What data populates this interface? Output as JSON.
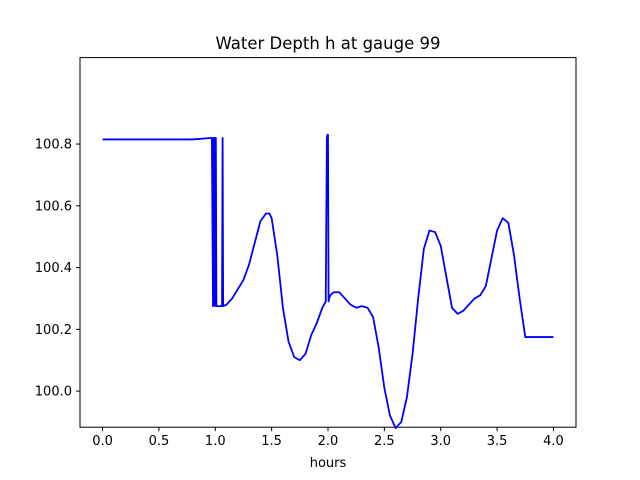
{
  "chart_data": {
    "type": "line",
    "title": "Water Depth h at gauge 99",
    "xlabel": "hours",
    "ylabel": "",
    "xlim": [
      -0.2,
      4.2
    ],
    "ylim": [
      99.883,
      101.08
    ],
    "xticks": [
      0.0,
      0.5,
      1.0,
      1.5,
      2.0,
      2.5,
      3.0,
      3.5,
      4.0
    ],
    "xtick_labels": [
      "0.0",
      "0.5",
      "1.0",
      "1.5",
      "2.0",
      "2.5",
      "3.0",
      "3.5",
      "4.0"
    ],
    "yticks": [
      100.0,
      100.2,
      100.4,
      100.6,
      100.8
    ],
    "ytick_labels": [
      "100.0",
      "100.2",
      "100.4",
      "100.6",
      "100.8"
    ],
    "grid": false,
    "series": [
      {
        "color": "#0000ff",
        "x": [
          0.0,
          0.5,
          0.8,
          0.97,
          0.98,
          0.985,
          0.99,
          0.995,
          1.0,
          1.005,
          1.01,
          1.02,
          1.06,
          1.065,
          1.07,
          1.1,
          1.15,
          1.2,
          1.25,
          1.3,
          1.35,
          1.4,
          1.45,
          1.48,
          1.5,
          1.55,
          1.6,
          1.65,
          1.7,
          1.75,
          1.8,
          1.85,
          1.9,
          1.95,
          1.98,
          1.99,
          1.995,
          2.0,
          2.005,
          2.01,
          2.02,
          2.05,
          2.1,
          2.15,
          2.2,
          2.25,
          2.3,
          2.35,
          2.4,
          2.45,
          2.5,
          2.55,
          2.6,
          2.65,
          2.7,
          2.75,
          2.8,
          2.85,
          2.9,
          2.95,
          3.0,
          3.05,
          3.1,
          3.15,
          3.2,
          3.25,
          3.3,
          3.35,
          3.4,
          3.45,
          3.5,
          3.55,
          3.6,
          3.65,
          3.7,
          3.75,
          3.8,
          3.85,
          3.9,
          3.95,
          4.0
        ],
        "y": [
          100.815,
          100.815,
          100.815,
          100.82,
          100.275,
          100.82,
          100.82,
          100.275,
          100.82,
          100.82,
          100.275,
          100.275,
          100.275,
          100.82,
          100.275,
          100.28,
          100.3,
          100.33,
          100.36,
          100.41,
          100.48,
          100.55,
          100.575,
          100.575,
          100.56,
          100.44,
          100.27,
          100.16,
          100.11,
          100.1,
          100.12,
          100.18,
          100.22,
          100.27,
          100.29,
          100.82,
          100.83,
          100.83,
          100.29,
          100.3,
          100.31,
          100.32,
          100.32,
          100.3,
          100.28,
          100.27,
          100.275,
          100.27,
          100.24,
          100.14,
          100.01,
          99.92,
          99.88,
          99.9,
          99.98,
          100.12,
          100.3,
          100.46,
          100.52,
          100.515,
          100.47,
          100.37,
          100.27,
          100.25,
          100.26,
          100.28,
          100.3,
          100.31,
          100.34,
          100.43,
          100.52,
          100.56,
          100.545,
          100.44,
          100.3,
          100.175,
          100.175,
          100.175,
          100.175,
          100.175,
          100.175
        ]
      }
    ]
  }
}
